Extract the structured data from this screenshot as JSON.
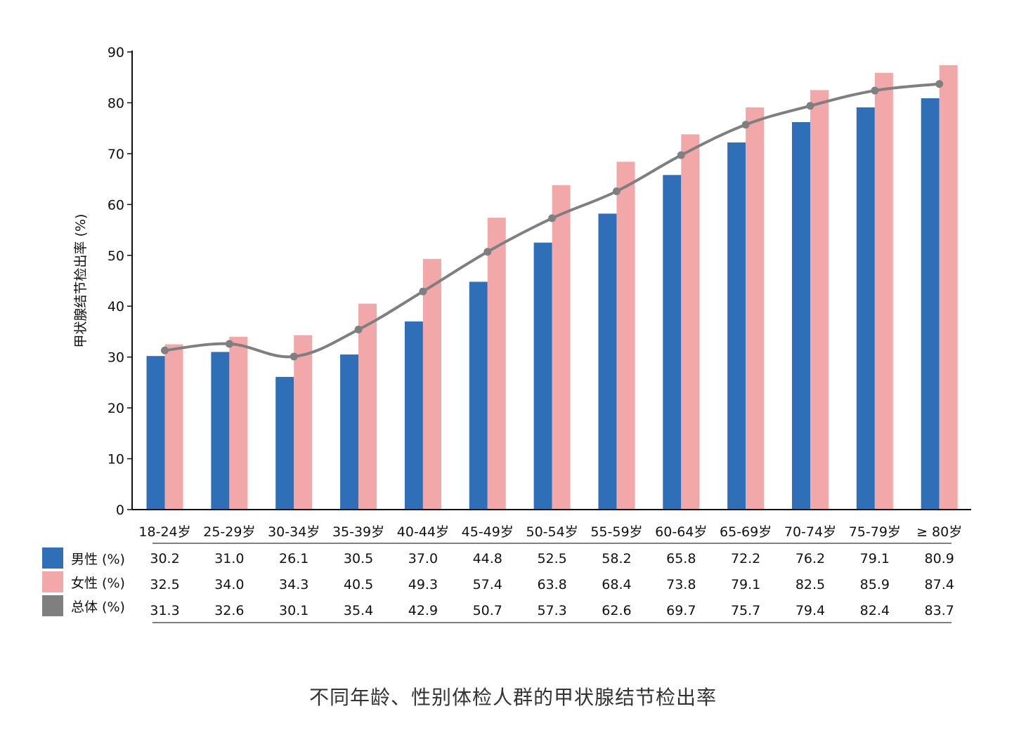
{
  "caption": "不同年龄、性别体检人群的甲状腺结节检出率",
  "colors": {
    "male": "#2f6fb8",
    "female": "#f2a7a8",
    "total": "#7f7f7f",
    "axis": "#111111"
  },
  "chart_data": {
    "type": "bar",
    "title": "",
    "xlabel": "",
    "ylabel": "甲状腺结节检出率 (%)",
    "ylim": [
      0,
      90
    ],
    "yticks": [
      0,
      10,
      20,
      30,
      40,
      50,
      60,
      70,
      80,
      90
    ],
    "grid": false,
    "categories": [
      "18-24岁",
      "25-29岁",
      "30-34岁",
      "35-39岁",
      "40-44岁",
      "45-49岁",
      "50-54岁",
      "55-59岁",
      "60-64岁",
      "65-69岁",
      "70-74岁",
      "75-79岁",
      "≥ 80岁"
    ],
    "series": [
      {
        "name": "男性 (%)",
        "kind": "bar",
        "color": "#2f6fb8",
        "values": [
          30.2,
          31.0,
          26.1,
          30.5,
          37.0,
          44.8,
          52.5,
          58.2,
          65.8,
          72.2,
          76.2,
          79.1,
          80.9
        ]
      },
      {
        "name": "女性 (%)",
        "kind": "bar",
        "color": "#f2a7a8",
        "values": [
          32.5,
          34.0,
          34.3,
          40.5,
          49.3,
          57.4,
          63.8,
          68.4,
          73.8,
          79.1,
          82.5,
          85.9,
          87.4
        ]
      },
      {
        "name": "总体 (%)",
        "kind": "line",
        "color": "#7f7f7f",
        "values": [
          31.3,
          32.6,
          30.1,
          35.4,
          42.9,
          50.7,
          57.3,
          62.6,
          69.7,
          75.7,
          79.4,
          82.4,
          83.7
        ]
      }
    ],
    "data_table": {
      "rows": [
        {
          "label": "男性 (%)",
          "values": [
            "30.2",
            "31.0",
            "26.1",
            "30.5",
            "37.0",
            "44.8",
            "52.5",
            "58.2",
            "65.8",
            "72.2",
            "76.2",
            "79.1",
            "80.9"
          ]
        },
        {
          "label": "女性 (%)",
          "values": [
            "32.5",
            "34.0",
            "34.3",
            "40.5",
            "49.3",
            "57.4",
            "63.8",
            "68.4",
            "73.8",
            "79.1",
            "82.5",
            "85.9",
            "87.4"
          ]
        },
        {
          "label": "总体 (%)",
          "values": [
            "31.3",
            "32.6",
            "30.1",
            "35.4",
            "42.9",
            "50.7",
            "57.3",
            "62.6",
            "69.7",
            "75.7",
            "79.4",
            "82.4",
            "83.7"
          ]
        }
      ]
    }
  }
}
